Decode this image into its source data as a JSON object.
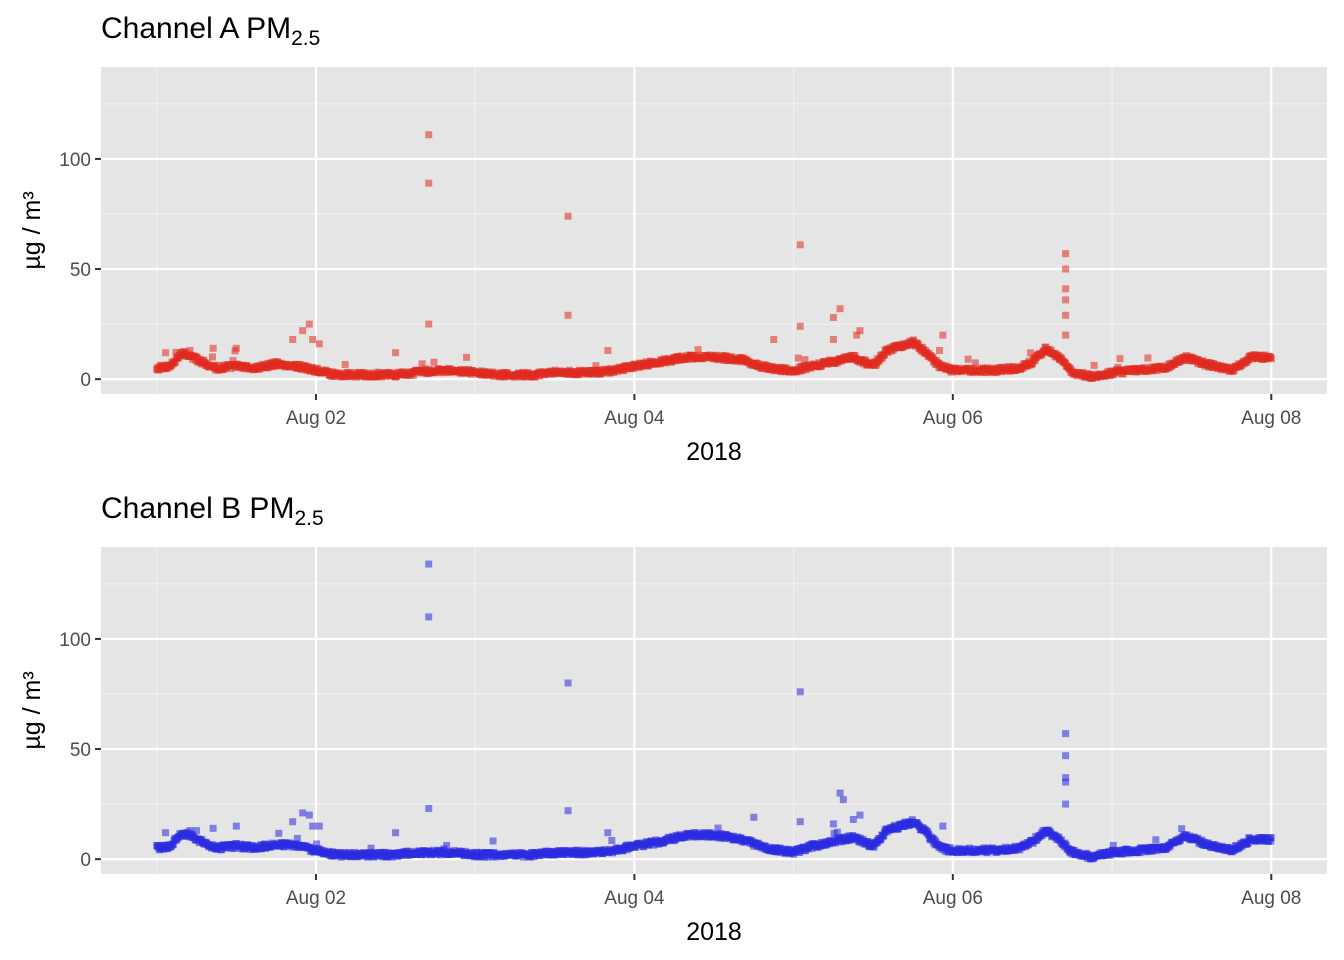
{
  "chart_data": [
    {
      "type": "scatter",
      "title_main": "Channel A PM",
      "title_sub": "2.5",
      "xlabel": "2018",
      "ylabel": "µg / m³",
      "color": "#e02b20",
      "xlim": [
        "2018-08-01T00:00",
        "2018-08-08T00:00"
      ],
      "ylim": [
        0,
        135
      ],
      "y_ticks": [
        0,
        50,
        100
      ],
      "x_ticks": [
        "Aug 02",
        "Aug 04",
        "Aug 06",
        "Aug 08"
      ],
      "x_tick_dates": [
        "2018-08-02",
        "2018-08-04",
        "2018-08-06",
        "2018-08-08"
      ],
      "baseline": [
        [
          "2018-08-01T00:00",
          5
        ],
        [
          "2018-08-01T02:00",
          6
        ],
        [
          "2018-08-01T04:00",
          12
        ],
        [
          "2018-08-01T06:00",
          9
        ],
        [
          "2018-08-01T09:00",
          5
        ],
        [
          "2018-08-01T12:00",
          6
        ],
        [
          "2018-08-01T15:00",
          5
        ],
        [
          "2018-08-01T18:00",
          7
        ],
        [
          "2018-08-01T21:00",
          6
        ],
        [
          "2018-08-02T00:00",
          4
        ],
        [
          "2018-08-02T03:00",
          2
        ],
        [
          "2018-08-02T06:00",
          2
        ],
        [
          "2018-08-02T09:00",
          2
        ],
        [
          "2018-08-02T12:00",
          2
        ],
        [
          "2018-08-02T15:00",
          3
        ],
        [
          "2018-08-02T18:00",
          4
        ],
        [
          "2018-08-02T21:00",
          4
        ],
        [
          "2018-08-03T00:00",
          3
        ],
        [
          "2018-08-03T03:00",
          2
        ],
        [
          "2018-08-03T06:00",
          2
        ],
        [
          "2018-08-03T09:00",
          2
        ],
        [
          "2018-08-03T12:00",
          3
        ],
        [
          "2018-08-03T15:00",
          3
        ],
        [
          "2018-08-03T18:00",
          3
        ],
        [
          "2018-08-03T21:00",
          4
        ],
        [
          "2018-08-04T00:00",
          6
        ],
        [
          "2018-08-04T04:00",
          8
        ],
        [
          "2018-08-04T08:00",
          10
        ],
        [
          "2018-08-04T12:00",
          10
        ],
        [
          "2018-08-04T16:00",
          9
        ],
        [
          "2018-08-04T20:00",
          5
        ],
        [
          "2018-08-05T00:00",
          4
        ],
        [
          "2018-08-05T03:00",
          6
        ],
        [
          "2018-08-05T06:00",
          8
        ],
        [
          "2018-08-05T09:00",
          10
        ],
        [
          "2018-08-05T12:00",
          6
        ],
        [
          "2018-08-05T14:00",
          13
        ],
        [
          "2018-08-05T18:00",
          17
        ],
        [
          "2018-08-05T20:00",
          12
        ],
        [
          "2018-08-05T22:00",
          6
        ],
        [
          "2018-08-06T00:00",
          4
        ],
        [
          "2018-08-06T06:00",
          4
        ],
        [
          "2018-08-06T10:00",
          5
        ],
        [
          "2018-08-06T12:00",
          8
        ],
        [
          "2018-08-06T14:00",
          14
        ],
        [
          "2018-08-06T16:00",
          10
        ],
        [
          "2018-08-06T18:00",
          3
        ],
        [
          "2018-08-06T21:00",
          1
        ],
        [
          "2018-08-07T00:00",
          3
        ],
        [
          "2018-08-07T04:00",
          4
        ],
        [
          "2018-08-07T08:00",
          5
        ],
        [
          "2018-08-07T11:00",
          10
        ],
        [
          "2018-08-07T14:00",
          7
        ],
        [
          "2018-08-07T18:00",
          4
        ],
        [
          "2018-08-07T21:00",
          10
        ],
        [
          "2018-08-08T00:00",
          10
        ]
      ],
      "spikes": [
        [
          "2018-08-01T01:20",
          12
        ],
        [
          "2018-08-01T05:00",
          13
        ],
        [
          "2018-08-01T08:30",
          14
        ],
        [
          "2018-08-01T12:00",
          14
        ],
        [
          "2018-08-01T20:30",
          18
        ],
        [
          "2018-08-01T22:00",
          22
        ],
        [
          "2018-08-01T23:00",
          25
        ],
        [
          "2018-08-01T23:30",
          18
        ],
        [
          "2018-08-02T00:30",
          16
        ],
        [
          "2018-08-02T12:00",
          12
        ],
        [
          "2018-08-02T17:00",
          25
        ],
        [
          "2018-08-02T17:00",
          89
        ],
        [
          "2018-08-02T17:00",
          111
        ],
        [
          "2018-08-03T14:00",
          29
        ],
        [
          "2018-08-03T14:00",
          74
        ],
        [
          "2018-08-03T20:00",
          13
        ],
        [
          "2018-08-04T21:00",
          18
        ],
        [
          "2018-08-05T01:00",
          24
        ],
        [
          "2018-08-05T01:00",
          61
        ],
        [
          "2018-08-05T07:00",
          32
        ],
        [
          "2018-08-05T09:30",
          20
        ],
        [
          "2018-08-05T10:00",
          22
        ],
        [
          "2018-08-05T22:00",
          13
        ],
        [
          "2018-08-05T22:30",
          20
        ],
        [
          "2018-08-06T17:00",
          20
        ],
        [
          "2018-08-06T17:00",
          29
        ],
        [
          "2018-08-06T17:00",
          36
        ],
        [
          "2018-08-06T17:00",
          41
        ],
        [
          "2018-08-06T17:00",
          50
        ],
        [
          "2018-08-06T17:00",
          57
        ],
        [
          "2018-08-05T06:00",
          28
        ],
        [
          "2018-08-05T06:00",
          18
        ]
      ]
    },
    {
      "type": "scatter",
      "title_main": "Channel B PM",
      "title_sub": "2.5",
      "xlabel": "2018",
      "ylabel": "µg / m³",
      "color": "#2b2be0",
      "xlim": [
        "2018-08-01T00:00",
        "2018-08-08T00:00"
      ],
      "ylim": [
        0,
        135
      ],
      "y_ticks": [
        0,
        50,
        100
      ],
      "x_ticks": [
        "Aug 02",
        "Aug 04",
        "Aug 06",
        "Aug 08"
      ],
      "x_tick_dates": [
        "2018-08-02",
        "2018-08-04",
        "2018-08-06",
        "2018-08-08"
      ],
      "baseline": [
        [
          "2018-08-01T00:00",
          5
        ],
        [
          "2018-08-01T02:00",
          6
        ],
        [
          "2018-08-01T04:00",
          12
        ],
        [
          "2018-08-01T06:00",
          9
        ],
        [
          "2018-08-01T09:00",
          5
        ],
        [
          "2018-08-01T12:00",
          6
        ],
        [
          "2018-08-01T15:00",
          5
        ],
        [
          "2018-08-01T18:00",
          7
        ],
        [
          "2018-08-01T21:00",
          6
        ],
        [
          "2018-08-02T00:00",
          4
        ],
        [
          "2018-08-02T03:00",
          2
        ],
        [
          "2018-08-02T06:00",
          2
        ],
        [
          "2018-08-02T09:00",
          2
        ],
        [
          "2018-08-02T12:00",
          2
        ],
        [
          "2018-08-02T15:00",
          3
        ],
        [
          "2018-08-02T18:00",
          3
        ],
        [
          "2018-08-02T21:00",
          3
        ],
        [
          "2018-08-03T00:00",
          2
        ],
        [
          "2018-08-03T03:00",
          2
        ],
        [
          "2018-08-03T06:00",
          2
        ],
        [
          "2018-08-03T09:00",
          2
        ],
        [
          "2018-08-03T12:00",
          3
        ],
        [
          "2018-08-03T15:00",
          3
        ],
        [
          "2018-08-03T18:00",
          3
        ],
        [
          "2018-08-03T21:00",
          4
        ],
        [
          "2018-08-04T00:00",
          6
        ],
        [
          "2018-08-04T04:00",
          8
        ],
        [
          "2018-08-04T08:00",
          11
        ],
        [
          "2018-08-04T12:00",
          11
        ],
        [
          "2018-08-04T16:00",
          9
        ],
        [
          "2018-08-04T20:00",
          5
        ],
        [
          "2018-08-05T00:00",
          3
        ],
        [
          "2018-08-05T03:00",
          6
        ],
        [
          "2018-08-05T06:00",
          8
        ],
        [
          "2018-08-05T09:00",
          10
        ],
        [
          "2018-08-05T12:00",
          6
        ],
        [
          "2018-08-05T14:00",
          13
        ],
        [
          "2018-08-05T18:00",
          17
        ],
        [
          "2018-08-05T20:00",
          12
        ],
        [
          "2018-08-05T22:00",
          5
        ],
        [
          "2018-08-06T00:00",
          4
        ],
        [
          "2018-08-06T06:00",
          4
        ],
        [
          "2018-08-06T10:00",
          5
        ],
        [
          "2018-08-06T12:00",
          8
        ],
        [
          "2018-08-06T14:00",
          13
        ],
        [
          "2018-08-06T16:00",
          9
        ],
        [
          "2018-08-06T18:00",
          3
        ],
        [
          "2018-08-06T21:00",
          1
        ],
        [
          "2018-08-07T00:00",
          3
        ],
        [
          "2018-08-07T04:00",
          4
        ],
        [
          "2018-08-07T08:00",
          5
        ],
        [
          "2018-08-07T11:00",
          11
        ],
        [
          "2018-08-07T14:00",
          7
        ],
        [
          "2018-08-07T18:00",
          4
        ],
        [
          "2018-08-07T21:00",
          9
        ],
        [
          "2018-08-08T00:00",
          9
        ]
      ],
      "spikes": [
        [
          "2018-08-01T01:20",
          12
        ],
        [
          "2018-08-01T05:00",
          13
        ],
        [
          "2018-08-01T08:30",
          14
        ],
        [
          "2018-08-01T12:00",
          15
        ],
        [
          "2018-08-01T20:30",
          17
        ],
        [
          "2018-08-01T22:00",
          21
        ],
        [
          "2018-08-01T23:00",
          20
        ],
        [
          "2018-08-01T23:30",
          15
        ],
        [
          "2018-08-02T00:30",
          15
        ],
        [
          "2018-08-02T12:00",
          12
        ],
        [
          "2018-08-02T17:00",
          23
        ],
        [
          "2018-08-02T17:00",
          110
        ],
        [
          "2018-08-02T17:00",
          134
        ],
        [
          "2018-08-03T14:00",
          22
        ],
        [
          "2018-08-03T14:00",
          80
        ],
        [
          "2018-08-03T20:00",
          12
        ],
        [
          "2018-08-04T18:00",
          19
        ],
        [
          "2018-08-05T01:00",
          17
        ],
        [
          "2018-08-05T01:00",
          76
        ],
        [
          "2018-08-05T07:00",
          30
        ],
        [
          "2018-08-05T07:30",
          27
        ],
        [
          "2018-08-05T10:00",
          20
        ],
        [
          "2018-08-05T22:30",
          15
        ],
        [
          "2018-08-06T17:00",
          25
        ],
        [
          "2018-08-06T17:00",
          37
        ],
        [
          "2018-08-06T17:00",
          47
        ],
        [
          "2018-08-06T17:00",
          57
        ],
        [
          "2018-08-06T17:00",
          35
        ],
        [
          "2018-08-05T09:00",
          18
        ],
        [
          "2018-08-05T06:00",
          16
        ]
      ]
    }
  ]
}
